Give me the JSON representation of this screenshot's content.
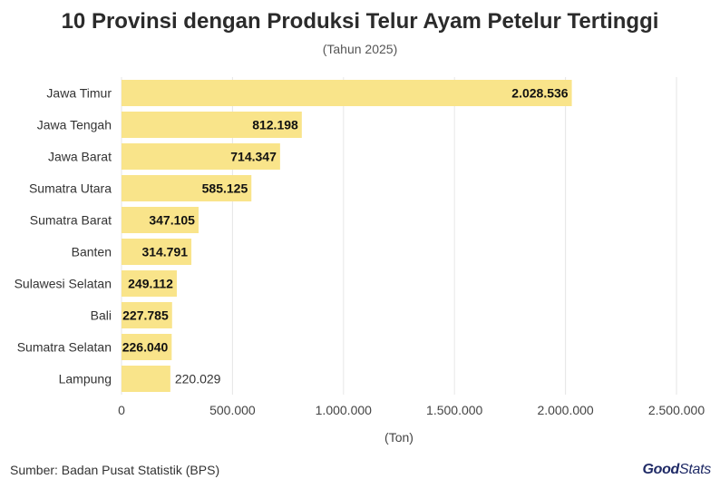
{
  "title": "10 Provinsi dengan Produksi Telur Ayam Petelur Tertinggi",
  "subtitle": "(Tahun 2025)",
  "source": "Sumber: Badan Pusat Statistik (BPS)",
  "logo": {
    "part1": "Good",
    "part2": "Stats"
  },
  "colors": {
    "bar": "#f9e48a",
    "grid": "#e6e6e6",
    "label_inside": "#111111",
    "label_outside": "#333333",
    "logo": "#1f2a66"
  },
  "chart_data": {
    "type": "bar",
    "orientation": "horizontal",
    "categories": [
      "Jawa Timur",
      "Jawa Tengah",
      "Jawa Barat",
      "Sumatra Utara",
      "Sumatra Barat",
      "Banten",
      "Sulawesi Selatan",
      "Bali",
      "Sumatra Selatan",
      "Lampung"
    ],
    "values": [
      2028536,
      812198,
      714347,
      585125,
      347105,
      314791,
      249112,
      227785,
      226040,
      220029
    ],
    "value_labels": [
      "2.028.536",
      "812.198",
      "714.347",
      "585.125",
      "347.105",
      "314.791",
      "249.112",
      "227.785",
      "226.040",
      "220.029"
    ],
    "xlabel": "(Ton)",
    "xlim": [
      0,
      2500000
    ],
    "xticks": [
      0,
      500000,
      1000000,
      1500000,
      2000000,
      2500000
    ],
    "xtick_labels": [
      "0",
      "500.000",
      "1.000.000",
      "1.500.000",
      "2.000.000",
      "2.500.000"
    ],
    "grid": "vertical"
  }
}
